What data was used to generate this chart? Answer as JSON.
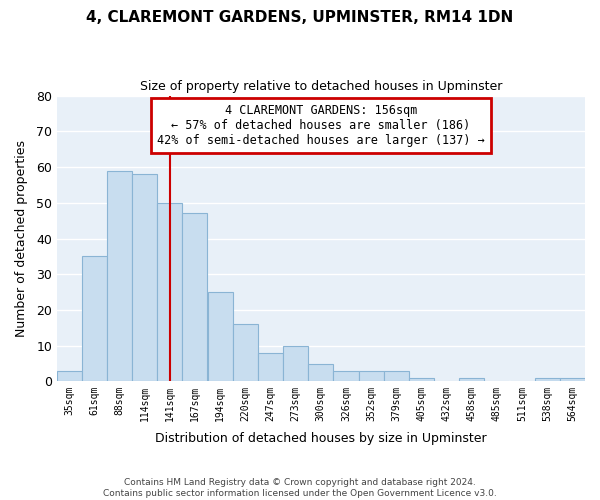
{
  "title": "4, CLAREMONT GARDENS, UPMINSTER, RM14 1DN",
  "subtitle": "Size of property relative to detached houses in Upminster",
  "xlabel": "Distribution of detached houses by size in Upminster",
  "ylabel": "Number of detached properties",
  "bar_color": "#c8ddef",
  "bar_edge_color": "#8ab4d4",
  "plot_bg_color": "#e8f0f8",
  "background_color": "#ffffff",
  "grid_color": "#ffffff",
  "categories": [
    "35sqm",
    "61sqm",
    "88sqm",
    "114sqm",
    "141sqm",
    "167sqm",
    "194sqm",
    "220sqm",
    "247sqm",
    "273sqm",
    "300sqm",
    "326sqm",
    "352sqm",
    "379sqm",
    "405sqm",
    "432sqm",
    "458sqm",
    "485sqm",
    "511sqm",
    "538sqm",
    "564sqm"
  ],
  "values": [
    3,
    35,
    59,
    58,
    50,
    47,
    25,
    16,
    8,
    10,
    5,
    3,
    3,
    3,
    1,
    0,
    1,
    0,
    0,
    1,
    1
  ],
  "ylim": [
    0,
    80
  ],
  "yticks": [
    0,
    10,
    20,
    30,
    40,
    50,
    60,
    70,
    80
  ],
  "redline_x": 4.0,
  "annotation_title": "4 CLAREMONT GARDENS: 156sqm",
  "annotation_line1": "← 57% of detached houses are smaller (186)",
  "annotation_line2": "42% of semi-detached houses are larger (137) →",
  "annotation_box_color": "#ffffff",
  "annotation_border_color": "#cc0000",
  "redline_color": "#cc0000",
  "footer1": "Contains HM Land Registry data © Crown copyright and database right 2024.",
  "footer2": "Contains public sector information licensed under the Open Government Licence v3.0."
}
